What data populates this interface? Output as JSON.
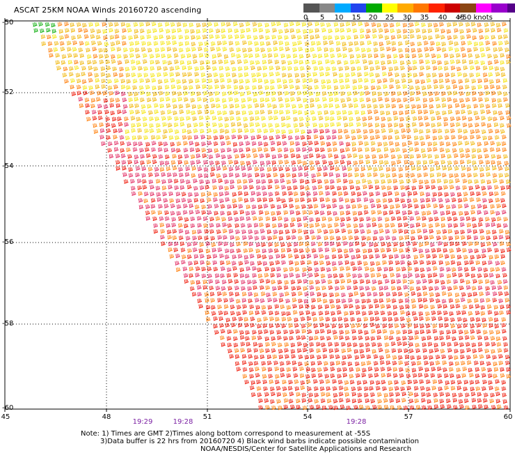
{
  "title": "ASCAT 25KM NOAA Winds 20160720 ascending",
  "legend": {
    "labels": [
      "0",
      "5",
      "10",
      "15",
      "20",
      "25",
      "30",
      "35",
      "40",
      "45",
      ">50 knots"
    ],
    "colors": [
      "#555555",
      "#888888",
      "#00aaff",
      "#2244ee",
      "#00aa00",
      "#ffff00",
      "#ffaa00",
      "#ff7700",
      "#ff2200",
      "#cc0000",
      "#8b4513",
      "#ff00ff",
      "#9900cc",
      "#550088"
    ]
  },
  "axes": {
    "x_ticks": [
      "45",
      "48",
      "51",
      "54",
      "57",
      "60"
    ],
    "y_ticks": [
      "-50",
      "-52",
      "-54",
      "-56",
      "-58",
      "-60"
    ]
  },
  "times": [
    "19:29",
    "19:28",
    "19:28"
  ],
  "notes": {
    "line1": "Note: 1) Times are GMT 2)Times along bottom correspond to measurement at -55S",
    "line2": "3)Data buffer is 22 hrs from 20160720 4) Black wind barbs indicate possible contamination",
    "line3": "NOAA/NESDIS/Center for Satellite Applications and Research"
  },
  "barb_colors": {
    "low": "#00aa00",
    "yellow": "#f5e400",
    "gold": "#f0b400",
    "orange": "#ff7a00",
    "red": "#ee1100",
    "pink": "#e0205a"
  }
}
